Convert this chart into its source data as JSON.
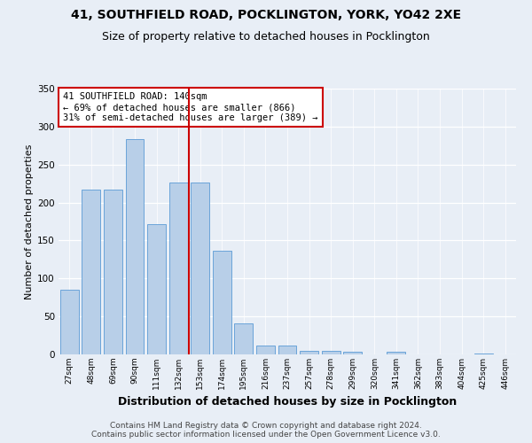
{
  "title1": "41, SOUTHFIELD ROAD, POCKLINGTON, YORK, YO42 2XE",
  "title2": "Size of property relative to detached houses in Pocklington",
  "xlabel": "Distribution of detached houses by size in Pocklington",
  "ylabel": "Number of detached properties",
  "categories": [
    "27sqm",
    "48sqm",
    "69sqm",
    "90sqm",
    "111sqm",
    "132sqm",
    "153sqm",
    "174sqm",
    "195sqm",
    "216sqm",
    "237sqm",
    "257sqm",
    "278sqm",
    "299sqm",
    "320sqm",
    "341sqm",
    "362sqm",
    "383sqm",
    "404sqm",
    "425sqm",
    "446sqm"
  ],
  "values": [
    85,
    217,
    217,
    284,
    171,
    226,
    226,
    136,
    41,
    12,
    12,
    5,
    5,
    3,
    0,
    3,
    0,
    0,
    0,
    1,
    0
  ],
  "bar_color": "#b8cfe8",
  "bar_edge_color": "#5b9bd5",
  "vline_x": 6,
  "vline_color": "#cc0000",
  "annotation_text": "41 SOUTHFIELD ROAD: 140sqm\n← 69% of detached houses are smaller (866)\n31% of semi-detached houses are larger (389) →",
  "annotation_box_color": "#ffffff",
  "annotation_box_edge": "#cc0000",
  "ylim": [
    0,
    350
  ],
  "yticks": [
    0,
    50,
    100,
    150,
    200,
    250,
    300,
    350
  ],
  "bg_color": "#e8eef6",
  "plot_bg_color": "#e8eef6",
  "footer": "Contains HM Land Registry data © Crown copyright and database right 2024.\nContains public sector information licensed under the Open Government Licence v3.0.",
  "title1_fontsize": 10,
  "title2_fontsize": 9,
  "xlabel_fontsize": 9,
  "ylabel_fontsize": 8,
  "footer_fontsize": 6.5,
  "ann_fontsize": 7.5
}
